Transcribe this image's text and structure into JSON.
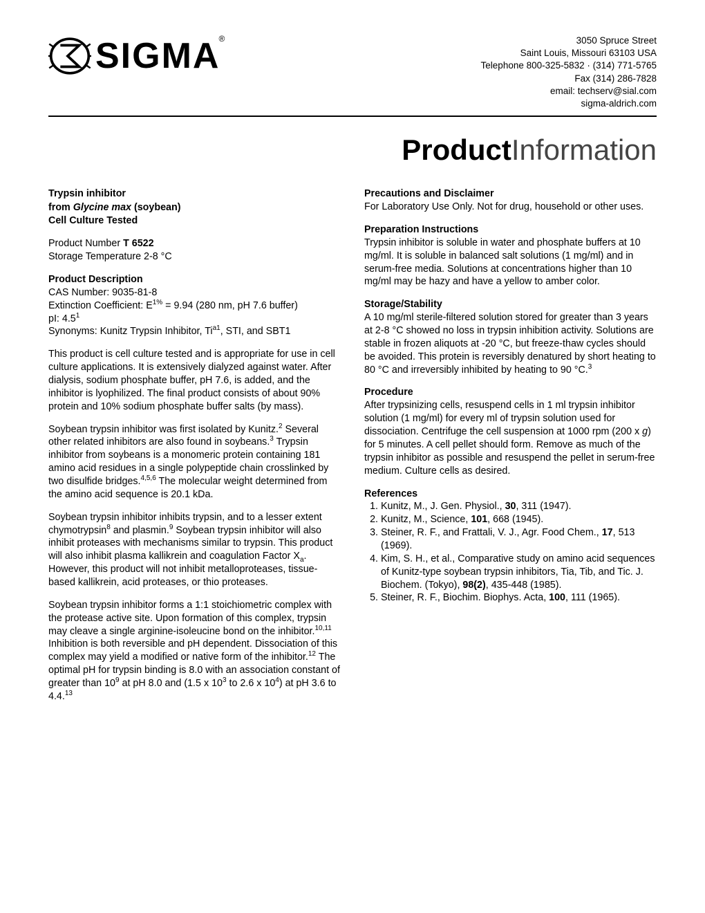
{
  "header": {
    "company_name": "SIGMA",
    "contact": {
      "street": "3050 Spruce Street",
      "city_line": "Saint Louis, Missouri 63103 USA",
      "phone_line": "Telephone 800-325-5832 · (314) 771-5765",
      "fax_line": "Fax (314) 286-7828",
      "email_line": "email: techserv@sial.com",
      "web": "sigma-aldrich.com"
    }
  },
  "title": {
    "bold": "Product",
    "light": "Information"
  },
  "product": {
    "name_line1": "Trypsin inhibitor",
    "name_line2_prefix": "from ",
    "name_line2_species": "Glycine max",
    "name_line2_suffix": " (soybean)",
    "name_line3": "Cell Culture Tested",
    "number_label": "Product Number  ",
    "number_value": "T 6522",
    "storage_line": "Storage Temperature  2-8 °C"
  },
  "left": {
    "desc_heading": "Product Description",
    "cas": "CAS Number: 9035-81-8",
    "ext1": "Extinction Coefficient: E",
    "ext_sup": "1%",
    "ext2": " = 9.94 (280 nm, pH 7.6 buffer)",
    "pi": "pI: 4.5",
    "pi_sup": "1",
    "syn1": "Synonyms: Kunitz Trypsin Inhibitor, Ti",
    "syn_sup": "a1",
    "syn2": ", STI, and SBT1",
    "p1": "This product is cell culture tested and is appropriate for use in cell culture applications.  It is extensively dialyzed against water.  After dialysis, sodium phosphate buffer, pH 7.6, is added, and the inhibitor is lyophilized.  The final product consists of about 90% protein and 10% sodium phosphate buffer salts (by mass).",
    "p2a": "Soybean trypsin inhibitor was first isolated by Kunitz.",
    "p2a_sup": "2",
    "p2b": "  Several other related inhibitors are also found in soybeans.",
    "p2b_sup": "3",
    "p2c": "  Trypsin inhibitor from soybeans is a monomeric protein containing 181 amino acid residues in a single polypeptide chain crosslinked by two disulfide bridges.",
    "p2c_sup": "4,5,6",
    "p2d": "  The molecular weight determined from the amino acid sequence is 20.1 kDa.",
    "p3a": "Soybean trypsin inhibitor inhibits trypsin, and to a lesser extent chymotrypsin",
    "p3a_sup": "8",
    "p3b": " and plasmin.",
    "p3b_sup": "9",
    "p3c": "  Soybean trypsin inhibitor will also inhibit proteases with mechanisms similar to trypsin.  This product will also inhibit plasma kallikrein and coagulation Factor X",
    "p3c_sub": "a",
    "p3d": ".  However, this product will not inhibit metalloproteases, tissue-based kallikrein, acid proteases, or thio proteases.",
    "p4a": "Soybean trypsin inhibitor forms a 1:1 stoichiometric complex with the protease active site. Upon formation of this complex, trypsin may cleave a single arginine-isoleucine bond on the inhibitor.",
    "p4a_sup": "10,11",
    "p4b": "  Inhibition is both reversible and pH dependent.  Dissociation of this complex may yield a modified or native form of the inhibitor.",
    "p4b_sup": "12",
    "p4c": "  The optimal pH for trypsin binding is 8.0 with an association constant of greater than 10",
    "p4c_sup": "9",
    "p4d": " at pH 8.0 and (1.5 x 10",
    "p4d_sup": "3",
    "p4e": " to 2.6 x 10",
    "p4e_sup": "4",
    "p4f": ") at pH 3.6 to 4.4.",
    "p4f_sup": "13"
  },
  "right": {
    "precautions_heading": "Precautions and Disclaimer",
    "precautions_text": "For Laboratory Use Only.  Not for drug, household or other uses.",
    "prep_heading": "Preparation Instructions",
    "prep_text": "Trypsin inhibitor is soluble in water and phosphate buffers at 10 mg/ml. It is soluble in balanced salt solutions (1 mg/ml) and in serum-free media.  Solutions at concentrations higher than 10 mg/ml may be hazy and have a yellow to amber color.",
    "storage_heading": "Storage/Stability",
    "storage_text_a": "A 10 mg/ml sterile-filtered solution stored for greater than 3 years at 2-8 °C showed no loss in trypsin inhibition activity.  Solutions are stable in frozen aliquots at -20 °C, but freeze-thaw cycles should be avoided. This protein is reversibly denatured by short heating to 80 °C and irreversibly inhibited by heating to 90 °C.",
    "storage_sup": "3",
    "procedure_heading": "Procedure",
    "procedure_text_a": "After trypsinizing cells, resuspend cells in 1 ml trypsin inhibitor solution (1 mg/ml) for every ml of trypsin solution used for dissociation.  Centrifuge the cell suspension at 1000 rpm (200 x ",
    "procedure_g": "g",
    "procedure_text_b": ") for 5 minutes.  A cell pellet should form.  Remove as much of the trypsin inhibitor as possible and resuspend the pellet in serum-free medium.  Culture cells as desired.",
    "refs_heading": "References",
    "refs": [
      {
        "pre": "Kunitz, M., J. Gen. Physiol., ",
        "bold": "30",
        "post": ", 311 (1947)."
      },
      {
        "pre": "Kunitz, M., Science, ",
        "bold": "101",
        "post": ", 668 (1945)."
      },
      {
        "pre": "Steiner, R. F., and Frattali, V. J., Agr. Food Chem., ",
        "bold": "17",
        "post": ", 513 (1969)."
      },
      {
        "pre": "Kim, S. H., et al., Comparative study on amino acid sequences of Kunitz-type soybean trypsin inhibitors, Tia, Tib, and Tic. J. Biochem. (Tokyo), ",
        "bold": "98(2)",
        "post": ", 435-448 (1985)."
      },
      {
        "pre": "Steiner, R. F., Biochim. Biophys. Acta, ",
        "bold": "100",
        "post": ", 111 (1965)."
      }
    ]
  }
}
